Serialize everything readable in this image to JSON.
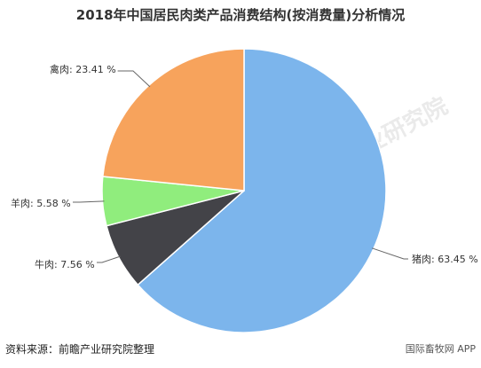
{
  "title": "2018年中国居民肉类产品消费结构(按消费量)分析情况",
  "source": "资料来源：前瞻产业研究院整理",
  "footer_brand": "国际畜牧网 APP",
  "watermark": "前瞻产业研究院",
  "chart_data": {
    "type": "pie",
    "title": "2018年中国居民肉类产品消费结构(按消费量)分析情况",
    "slices": [
      {
        "label": "猪肉",
        "value": 63.45,
        "text": "猪肉: 63.45 %",
        "color": "#7cb5ec"
      },
      {
        "label": "牛肉",
        "value": 7.56,
        "text": "牛肉: 7.56 %",
        "color": "#434348"
      },
      {
        "label": "羊肉",
        "value": 5.58,
        "text": "羊肉: 5.58 %",
        "color": "#90ed7d"
      },
      {
        "label": "禽肉",
        "value": 23.41,
        "text": "禽肉: 23.41 %",
        "color": "#f7a35c"
      }
    ]
  }
}
